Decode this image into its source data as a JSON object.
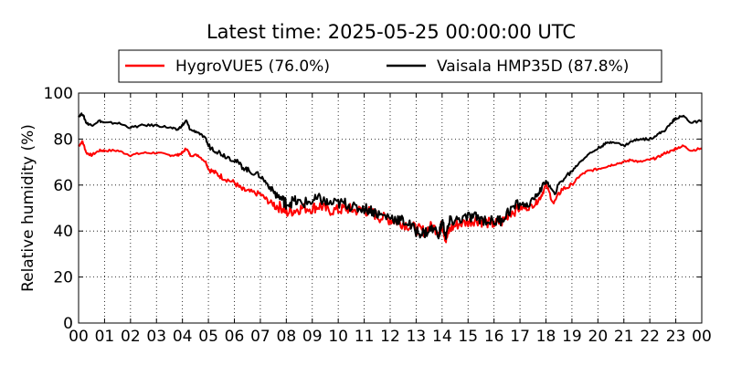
{
  "chart_data": {
    "type": "line",
    "title": "Latest time: 2025-05-25 00:00:00 UTC",
    "xlabel": "",
    "ylabel": "Relative humidity (%)",
    "ylim": [
      0,
      100
    ],
    "yticks": [
      0,
      20,
      40,
      60,
      80,
      100
    ],
    "xlim": [
      0,
      24
    ],
    "xticks": [
      "00",
      "01",
      "02",
      "03",
      "04",
      "05",
      "06",
      "07",
      "08",
      "09",
      "10",
      "11",
      "12",
      "13",
      "14",
      "15",
      "16",
      "17",
      "18",
      "19",
      "20",
      "21",
      "22",
      "23",
      "00"
    ],
    "grid": true,
    "legend_position": "top",
    "x_unit": "hour (UTC)",
    "series": [
      {
        "name": "HygroVUE5 (76.0%)",
        "color": "#ff0000",
        "x": [
          0,
          0.15,
          0.3,
          0.5,
          0.8,
          1.0,
          1.5,
          2.0,
          2.5,
          3.0,
          3.5,
          3.8,
          4.0,
          4.15,
          4.3,
          4.6,
          4.9,
          5.0,
          5.3,
          5.6,
          6.0,
          6.3,
          6.6,
          7.0,
          7.3,
          7.6,
          7.9,
          8.0,
          8.3,
          8.6,
          9.0,
          9.3,
          9.6,
          10.0,
          10.3,
          10.6,
          11.0,
          11.3,
          11.6,
          12.0,
          12.3,
          12.6,
          13.0,
          13.3,
          13.6,
          13.9,
          14.0,
          14.15,
          14.3,
          14.6,
          15.0,
          15.3,
          15.6,
          16.0,
          16.3,
          16.6,
          17.0,
          17.3,
          17.6,
          17.8,
          18.0,
          18.3,
          18.6,
          19.0,
          19.3,
          19.6,
          20.0,
          20.3,
          20.6,
          21.0,
          21.3,
          21.6,
          22.0,
          22.3,
          22.6,
          22.9,
          23.0,
          23.3,
          23.6,
          24.0
        ],
        "y": [
          77,
          79,
          74,
          73,
          75,
          75,
          75,
          73,
          74,
          74,
          73,
          73,
          74,
          76,
          73,
          73,
          70,
          67,
          65,
          63,
          61,
          58,
          57,
          56,
          53,
          51,
          50,
          48,
          49,
          50,
          50,
          51,
          49,
          49,
          50,
          49,
          49,
          48,
          46,
          45,
          44,
          43,
          41,
          40,
          42,
          40,
          43,
          36,
          41,
          43,
          44,
          45,
          44,
          43,
          44,
          48,
          50,
          50,
          52,
          55,
          60,
          52,
          58,
          60,
          64,
          66,
          67,
          68,
          69,
          70,
          71,
          70,
          71,
          72,
          74,
          75,
          76,
          77,
          75,
          76
        ]
      },
      {
        "name": "Vaisala HMP35D (87.8%)",
        "color": "#000000",
        "x": [
          0,
          0.15,
          0.3,
          0.5,
          0.8,
          1.0,
          1.5,
          2.0,
          2.5,
          3.0,
          3.5,
          3.8,
          4.0,
          4.15,
          4.3,
          4.6,
          4.9,
          5.0,
          5.3,
          5.6,
          6.0,
          6.3,
          6.6,
          7.0,
          7.3,
          7.6,
          7.9,
          8.0,
          8.3,
          8.6,
          9.0,
          9.3,
          9.6,
          10.0,
          10.3,
          10.6,
          11.0,
          11.3,
          11.6,
          12.0,
          12.3,
          12.6,
          13.0,
          13.3,
          13.6,
          13.9,
          14.0,
          14.15,
          14.3,
          14.6,
          15.0,
          15.3,
          15.6,
          16.0,
          16.3,
          16.6,
          17.0,
          17.3,
          17.6,
          17.8,
          18.0,
          18.3,
          18.6,
          19.0,
          19.3,
          19.6,
          20.0,
          20.3,
          20.6,
          21.0,
          21.3,
          21.6,
          22.0,
          22.3,
          22.6,
          22.9,
          23.0,
          23.3,
          23.6,
          24.0
        ],
        "y": [
          90,
          91,
          87,
          86,
          88,
          87,
          87,
          85,
          86,
          86,
          85,
          84,
          86,
          88,
          84,
          83,
          80,
          77,
          75,
          73,
          71,
          68,
          66,
          64,
          60,
          56,
          53,
          52,
          53,
          52,
          53,
          54,
          52,
          52,
          52,
          50,
          50,
          49,
          47,
          46,
          45,
          44,
          40,
          39,
          41,
          39,
          44,
          38,
          44,
          45,
          46,
          46,
          45,
          44,
          45,
          49,
          52,
          51,
          55,
          58,
          62,
          56,
          62,
          66,
          70,
          73,
          76,
          78,
          79,
          77,
          79,
          80,
          80,
          82,
          84,
          88,
          89,
          90,
          87,
          88
        ]
      }
    ]
  }
}
